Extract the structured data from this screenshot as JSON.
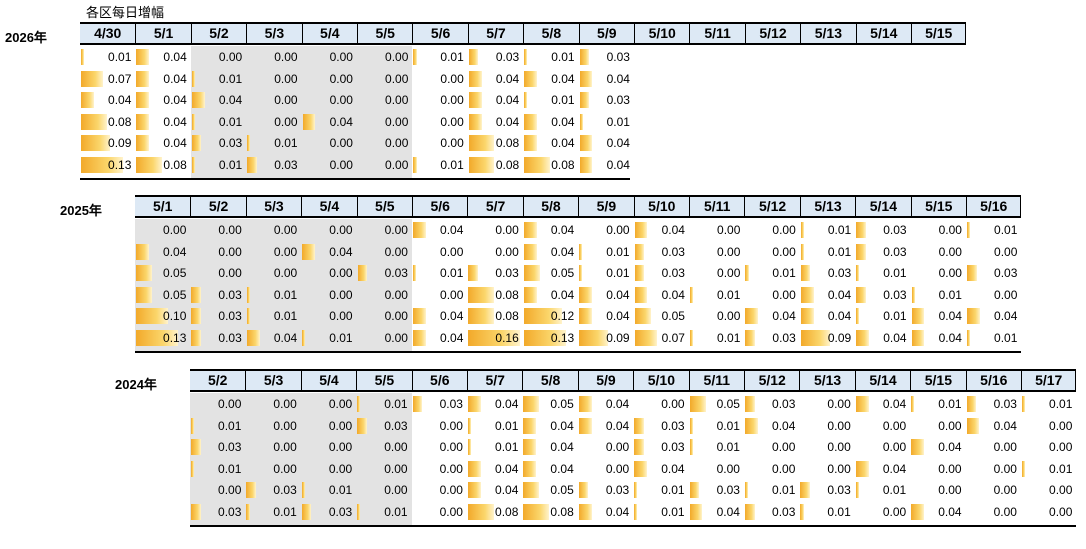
{
  "title": "各区每日增幅",
  "colors": {
    "header_bg": "#dde9f5",
    "bar": "#f2a92a",
    "holiday_bg": "#e3e3e3"
  },
  "chart_data": {
    "type": "table",
    "tables": [
      {
        "year": "2026年",
        "columns": [
          "4/30",
          "5/1",
          "5/2",
          "5/3",
          "5/4",
          "5/5",
          "5/6",
          "5/7",
          "5/8",
          "5/9",
          "5/10",
          "5/11",
          "5/12",
          "5/13",
          "5/14",
          "5/15"
        ],
        "rows": [
          [
            "0.01",
            "0.04",
            "0.00",
            "0.00",
            "0.00",
            "0.00",
            "0.01",
            "0.03",
            "0.01",
            "0.03"
          ],
          [
            "0.07",
            "0.04",
            "0.01",
            "0.00",
            "0.00",
            "0.00",
            "0.00",
            "0.04",
            "0.04",
            "0.04"
          ],
          [
            "0.04",
            "0.04",
            "0.04",
            "0.00",
            "0.00",
            "0.00",
            "0.00",
            "0.04",
            "0.01",
            "0.03"
          ],
          [
            "0.08",
            "0.04",
            "0.01",
            "0.00",
            "0.04",
            "0.00",
            "0.00",
            "0.04",
            "0.04",
            "0.01"
          ],
          [
            "0.09",
            "0.04",
            "0.03",
            "0.01",
            "0.00",
            "0.00",
            "0.00",
            "0.08",
            "0.04",
            "0.04"
          ],
          [
            "0.13",
            "0.08",
            "0.01",
            "0.03",
            "0.00",
            "0.00",
            "0.01",
            "0.08",
            "0.08",
            "0.04"
          ]
        ]
      },
      {
        "year": "2025年",
        "columns": [
          "5/1",
          "5/2",
          "5/3",
          "5/4",
          "5/5",
          "5/6",
          "5/7",
          "5/8",
          "5/9",
          "5/10",
          "5/11",
          "5/12",
          "5/13",
          "5/14",
          "5/15",
          "5/16"
        ],
        "rows": [
          [
            "0.00",
            "0.00",
            "0.00",
            "0.00",
            "0.00",
            "0.04",
            "0.00",
            "0.04",
            "0.00",
            "0.04",
            "0.00",
            "0.00",
            "0.01",
            "0.03",
            "0.00",
            "0.01"
          ],
          [
            "0.04",
            "0.00",
            "0.00",
            "0.04",
            "0.00",
            "0.00",
            "0.00",
            "0.04",
            "0.01",
            "0.03",
            "0.00",
            "0.00",
            "0.01",
            "0.03",
            "0.00",
            "0.00"
          ],
          [
            "0.05",
            "0.00",
            "0.00",
            "0.00",
            "0.03",
            "0.01",
            "0.03",
            "0.05",
            "0.01",
            "0.03",
            "0.00",
            "0.01",
            "0.03",
            "0.01",
            "0.00",
            "0.03"
          ],
          [
            "0.05",
            "0.03",
            "0.01",
            "0.00",
            "0.00",
            "0.00",
            "0.08",
            "0.04",
            "0.04",
            "0.04",
            "0.01",
            "0.00",
            "0.04",
            "0.03",
            "0.01",
            "0.00"
          ],
          [
            "0.10",
            "0.03",
            "0.01",
            "0.00",
            "0.00",
            "0.04",
            "0.08",
            "0.12",
            "0.04",
            "0.05",
            "0.00",
            "0.04",
            "0.04",
            "0.01",
            "0.04",
            "0.04"
          ],
          [
            "0.13",
            "0.03",
            "0.04",
            "0.01",
            "0.00",
            "0.04",
            "0.16",
            "0.13",
            "0.09",
            "0.07",
            "0.01",
            "0.03",
            "0.09",
            "0.04",
            "0.04",
            "0.01"
          ]
        ]
      },
      {
        "year": "2024年",
        "columns": [
          "5/2",
          "5/3",
          "5/4",
          "5/5",
          "5/6",
          "5/7",
          "5/8",
          "5/9",
          "5/10",
          "5/11",
          "5/12",
          "5/13",
          "5/14",
          "5/15",
          "5/16",
          "5/17"
        ],
        "rows": [
          [
            "0.00",
            "0.00",
            "0.00",
            "0.01",
            "0.03",
            "0.04",
            "0.05",
            "0.04",
            "0.00",
            "0.05",
            "0.03",
            "0.00",
            "0.04",
            "0.01",
            "0.03",
            "0.01"
          ],
          [
            "0.01",
            "0.00",
            "0.00",
            "0.03",
            "0.00",
            "0.01",
            "0.04",
            "0.04",
            "0.03",
            "0.01",
            "0.04",
            "0.00",
            "0.00",
            "0.00",
            "0.04",
            "0.00"
          ],
          [
            "0.03",
            "0.00",
            "0.00",
            "0.00",
            "0.00",
            "0.01",
            "0.04",
            "0.00",
            "0.03",
            "0.01",
            "0.00",
            "0.00",
            "0.00",
            "0.04",
            "0.00",
            "0.00"
          ],
          [
            "0.01",
            "0.00",
            "0.00",
            "0.00",
            "0.00",
            "0.04",
            "0.04",
            "0.00",
            "0.04",
            "0.00",
            "0.00",
            "0.00",
            "0.04",
            "0.00",
            "0.00",
            "0.01"
          ],
          [
            "0.00",
            "0.03",
            "0.01",
            "0.00",
            "0.00",
            "0.04",
            "0.05",
            "0.03",
            "0.01",
            "0.03",
            "0.01",
            "0.03",
            "0.01",
            "0.00",
            "0.00",
            "0.00"
          ],
          [
            "0.03",
            "0.01",
            "0.03",
            "0.01",
            "0.00",
            "0.08",
            "0.08",
            "0.04",
            "0.01",
            "0.04",
            "0.03",
            "0.01",
            "0.00",
            "0.04",
            "0.00",
            "0.00"
          ]
        ]
      }
    ]
  }
}
